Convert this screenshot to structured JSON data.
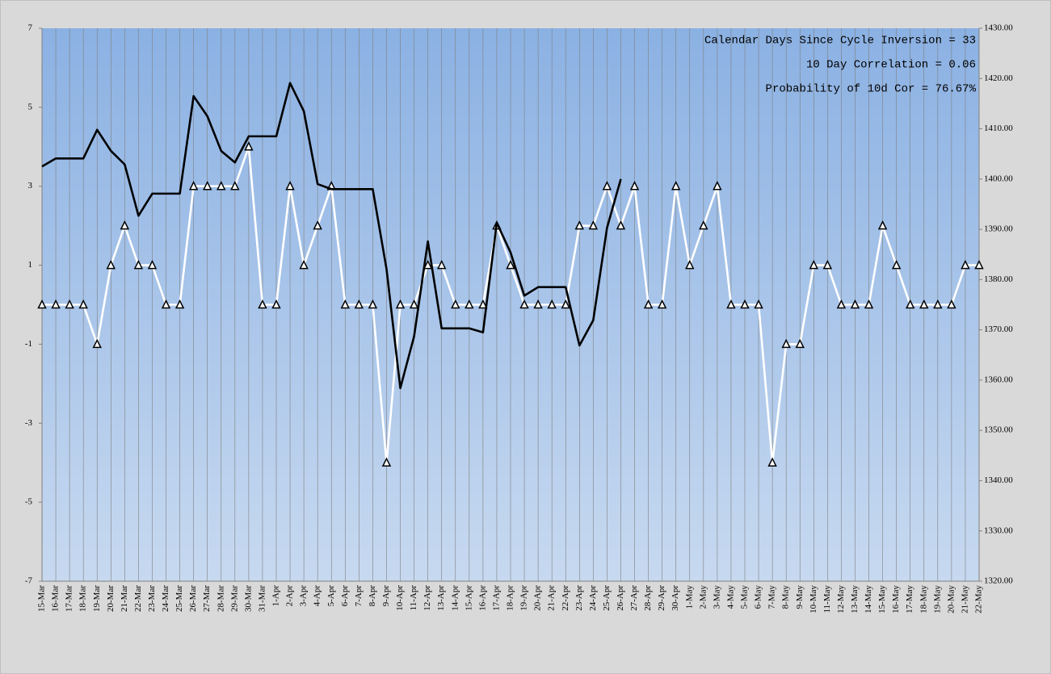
{
  "chart_data": {
    "type": "line",
    "annotations": [
      "Calendar Days Since Cycle Inversion = 33",
      "10 Day Correlation = 0.06",
      "Probability of 10d Cor = 76.67%"
    ],
    "categories": [
      "15-Mar",
      "16-Mar",
      "17-Mar",
      "18-Mar",
      "19-Mar",
      "20-Mar",
      "21-Mar",
      "22-Mar",
      "23-Mar",
      "24-Mar",
      "25-Mar",
      "26-Mar",
      "27-Mar",
      "28-Mar",
      "29-Mar",
      "30-Mar",
      "31-Mar",
      "1-Apr",
      "2-Apr",
      "3-Apr",
      "4-Apr",
      "5-Apr",
      "6-Apr",
      "7-Apr",
      "8-Apr",
      "9-Apr",
      "10-Apr",
      "11-Apr",
      "12-Apr",
      "13-Apr",
      "14-Apr",
      "15-Apr",
      "16-Apr",
      "17-Apr",
      "18-Apr",
      "19-Apr",
      "20-Apr",
      "21-Apr",
      "22-Apr",
      "23-Apr",
      "24-Apr",
      "25-Apr",
      "26-Apr",
      "27-Apr",
      "28-Apr",
      "29-Apr",
      "30-Apr",
      "1-May",
      "2-May",
      "3-May",
      "4-May",
      "5-May",
      "6-May",
      "7-May",
      "8-May",
      "9-May",
      "10-May",
      "11-May",
      "12-May",
      "13-May",
      "14-May",
      "15-May",
      "16-May",
      "17-May",
      "18-May",
      "19-May",
      "20-May",
      "21-May",
      "22-May"
    ],
    "series": [
      {
        "color": "#ffffff",
        "marker": "triangle",
        "axis": "y",
        "values": [
          0,
          0,
          0,
          0,
          -1,
          1,
          2,
          1,
          1,
          0,
          0,
          3,
          3,
          3,
          3,
          4,
          0,
          0,
          3,
          1,
          2,
          3,
          0,
          0,
          0,
          -4,
          0,
          0,
          1,
          1,
          0,
          0,
          0,
          2,
          1,
          0,
          0,
          0,
          0,
          2,
          2,
          3,
          2,
          3,
          0,
          0,
          3,
          1,
          2,
          3,
          0,
          0,
          0,
          -4,
          -1,
          -1,
          1,
          1,
          0,
          0,
          0,
          2,
          1,
          0,
          0,
          0,
          0,
          1,
          1
        ]
      },
      {
        "color": "#000000",
        "axis": "y2",
        "values": [
          1402.5,
          1404.1,
          1404.1,
          1404.1,
          1409.8,
          1405.6,
          1402.9,
          1392.7,
          1397.1,
          1397.1,
          1397.1,
          1416.5,
          1412.5,
          1405.6,
          1403.3,
          1408.5,
          1408.5,
          1408.5,
          1419.1,
          1413.5,
          1399.0,
          1398.0,
          1398.0,
          1398.0,
          1398.0,
          1382.1,
          1358.4,
          1368.7,
          1387.6,
          1370.3,
          1370.3,
          1370.3,
          1369.5,
          1391.3,
          1385.4,
          1376.8,
          1378.5,
          1378.5,
          1378.5,
          1366.9,
          1371.9,
          1390.3,
          1400.0,
          null,
          null,
          null,
          null,
          null,
          null,
          null,
          null,
          null,
          null,
          null,
          null,
          null,
          null,
          null,
          null,
          null,
          null,
          null,
          null,
          null,
          null,
          null,
          null,
          null,
          null
        ]
      }
    ],
    "ylim": [
      -7,
      7
    ],
    "yticks": [
      -7,
      -5,
      -3,
      -1,
      1,
      3,
      5,
      7
    ],
    "y2lim": [
      1320,
      1430
    ],
    "y2ticks": [
      {
        "value": 1320,
        "label": "1320.00"
      },
      {
        "value": 1330,
        "label": "1330.00"
      },
      {
        "value": 1340,
        "label": "1340.00"
      },
      {
        "value": 1350,
        "label": "1350.00"
      },
      {
        "value": 1360,
        "label": "1360.00"
      },
      {
        "value": 1370,
        "label": "1370.00"
      },
      {
        "value": 1380,
        "label": "1380.00"
      },
      {
        "value": 1390,
        "label": "1390.00"
      },
      {
        "value": 1400,
        "label": "1400.00"
      },
      {
        "value": 1410,
        "label": "1410.00"
      },
      {
        "value": 1420,
        "label": "1420.00"
      },
      {
        "value": 1430,
        "label": "1430.00"
      }
    ],
    "grid": true
  }
}
